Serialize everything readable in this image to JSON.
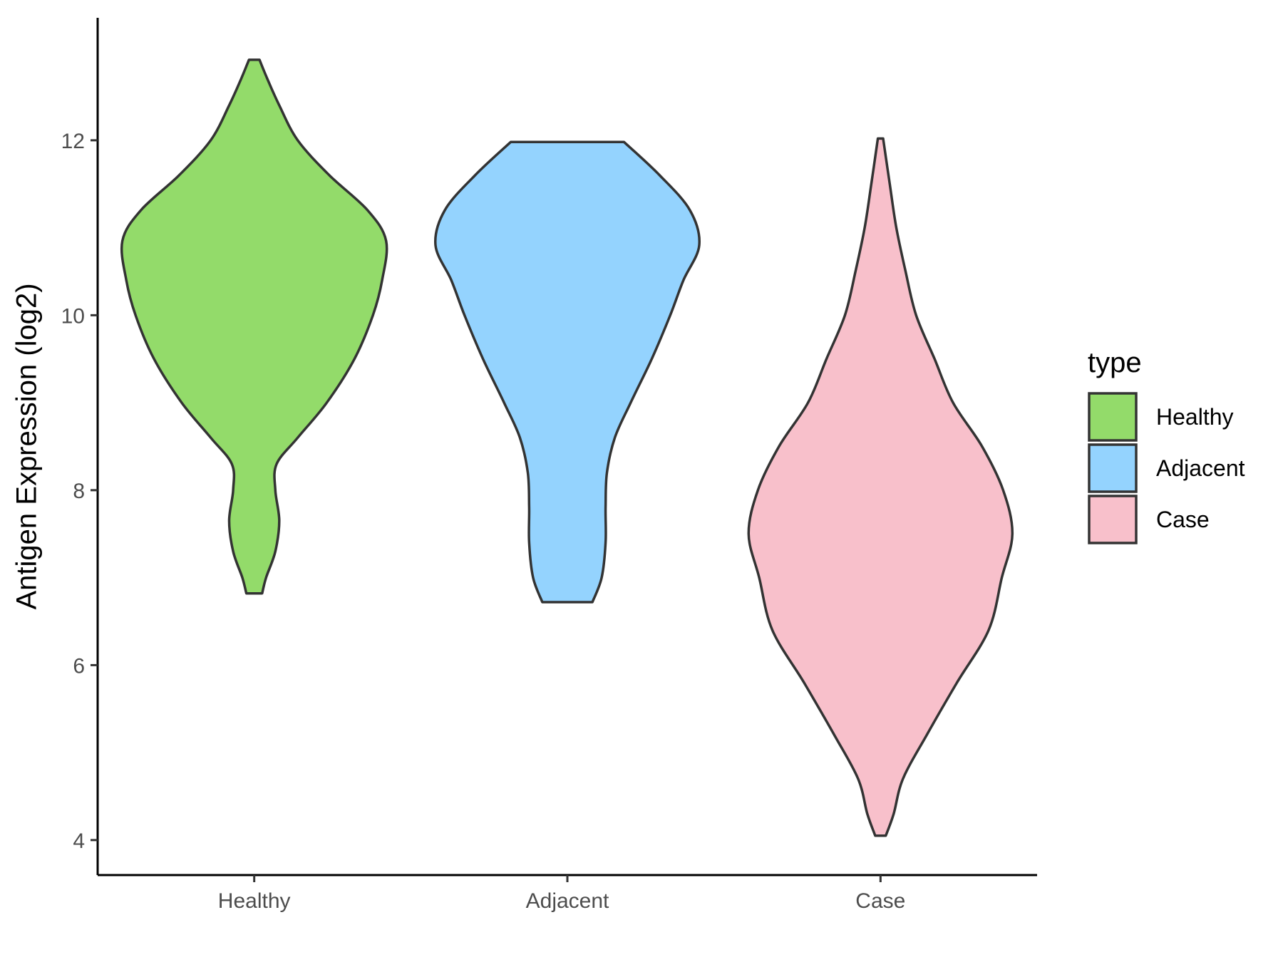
{
  "chart_data": {
    "type": "violin",
    "ylabel": "Antigen Expression (log2)",
    "xlabel": "",
    "ylim": [
      3.6,
      13.4
    ],
    "yticks": [
      4,
      6,
      8,
      10,
      12
    ],
    "grid": false,
    "legend": {
      "title": "type",
      "placement": "right"
    },
    "categories": [
      "Healthy",
      "Adjacent",
      "Case"
    ],
    "series": [
      {
        "name": "Healthy",
        "color": "#93DB6A",
        "density": [
          [
            6.82,
            0.06
          ],
          [
            7.0,
            0.09
          ],
          [
            7.3,
            0.16
          ],
          [
            7.65,
            0.19
          ],
          [
            8.0,
            0.16
          ],
          [
            8.3,
            0.17
          ],
          [
            8.6,
            0.33
          ],
          [
            9.0,
            0.55
          ],
          [
            9.5,
            0.76
          ],
          [
            10.0,
            0.9
          ],
          [
            10.4,
            0.97
          ],
          [
            10.85,
            1.0
          ],
          [
            11.2,
            0.86
          ],
          [
            11.6,
            0.57
          ],
          [
            12.0,
            0.33
          ],
          [
            12.4,
            0.19
          ],
          [
            12.7,
            0.1
          ],
          [
            12.92,
            0.04
          ]
        ]
      },
      {
        "name": "Adjacent",
        "color": "#94D3FE",
        "density": [
          [
            6.72,
            0.19
          ],
          [
            7.0,
            0.26
          ],
          [
            7.4,
            0.29
          ],
          [
            7.8,
            0.29
          ],
          [
            8.2,
            0.3
          ],
          [
            8.6,
            0.36
          ],
          [
            9.0,
            0.48
          ],
          [
            9.5,
            0.64
          ],
          [
            10.0,
            0.78
          ],
          [
            10.4,
            0.88
          ],
          [
            10.8,
            1.0
          ],
          [
            11.2,
            0.93
          ],
          [
            11.6,
            0.7
          ],
          [
            11.98,
            0.43
          ]
        ]
      },
      {
        "name": "Case",
        "color": "#F8C0CB",
        "density": [
          [
            4.05,
            0.04
          ],
          [
            4.3,
            0.1
          ],
          [
            4.7,
            0.17
          ],
          [
            5.2,
            0.35
          ],
          [
            5.8,
            0.58
          ],
          [
            6.4,
            0.82
          ],
          [
            7.0,
            0.92
          ],
          [
            7.5,
            1.0
          ],
          [
            8.0,
            0.93
          ],
          [
            8.5,
            0.77
          ],
          [
            9.0,
            0.55
          ],
          [
            9.5,
            0.41
          ],
          [
            10.0,
            0.27
          ],
          [
            10.5,
            0.19
          ],
          [
            11.0,
            0.12
          ],
          [
            11.5,
            0.07
          ],
          [
            12.02,
            0.02
          ]
        ]
      }
    ]
  }
}
